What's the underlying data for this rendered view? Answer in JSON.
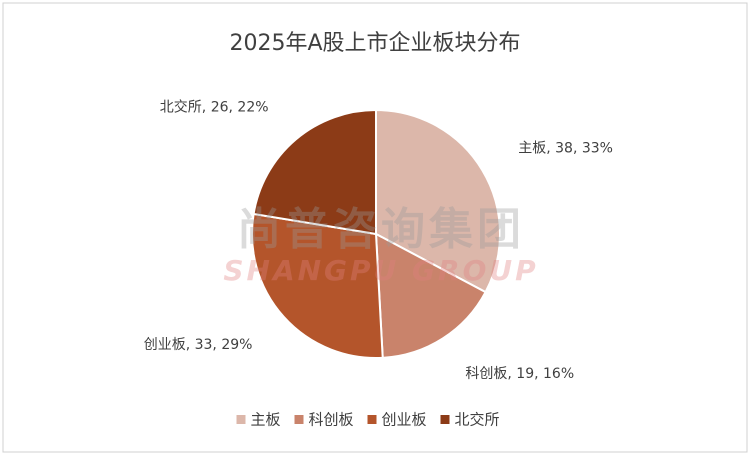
{
  "chart_data": {
    "type": "pie",
    "title": "2025年A股上市企业板块分布",
    "categories": [
      "主板",
      "科创板",
      "创业板",
      "北交所"
    ],
    "values": [
      38,
      19,
      33,
      26
    ],
    "value_labels": [
      "主板, 38, 33%",
      "科创板, 19, 16%",
      "创业板, 33, 29%",
      "北交所, 26, 22%"
    ],
    "colors": [
      "#dcb7aa",
      "#c9836b",
      "#b4552b",
      "#8c3b17"
    ],
    "watermark": "尚普咨询集团",
    "watermark_sub": "SHANGPU GROUP",
    "legend": "bottom"
  }
}
